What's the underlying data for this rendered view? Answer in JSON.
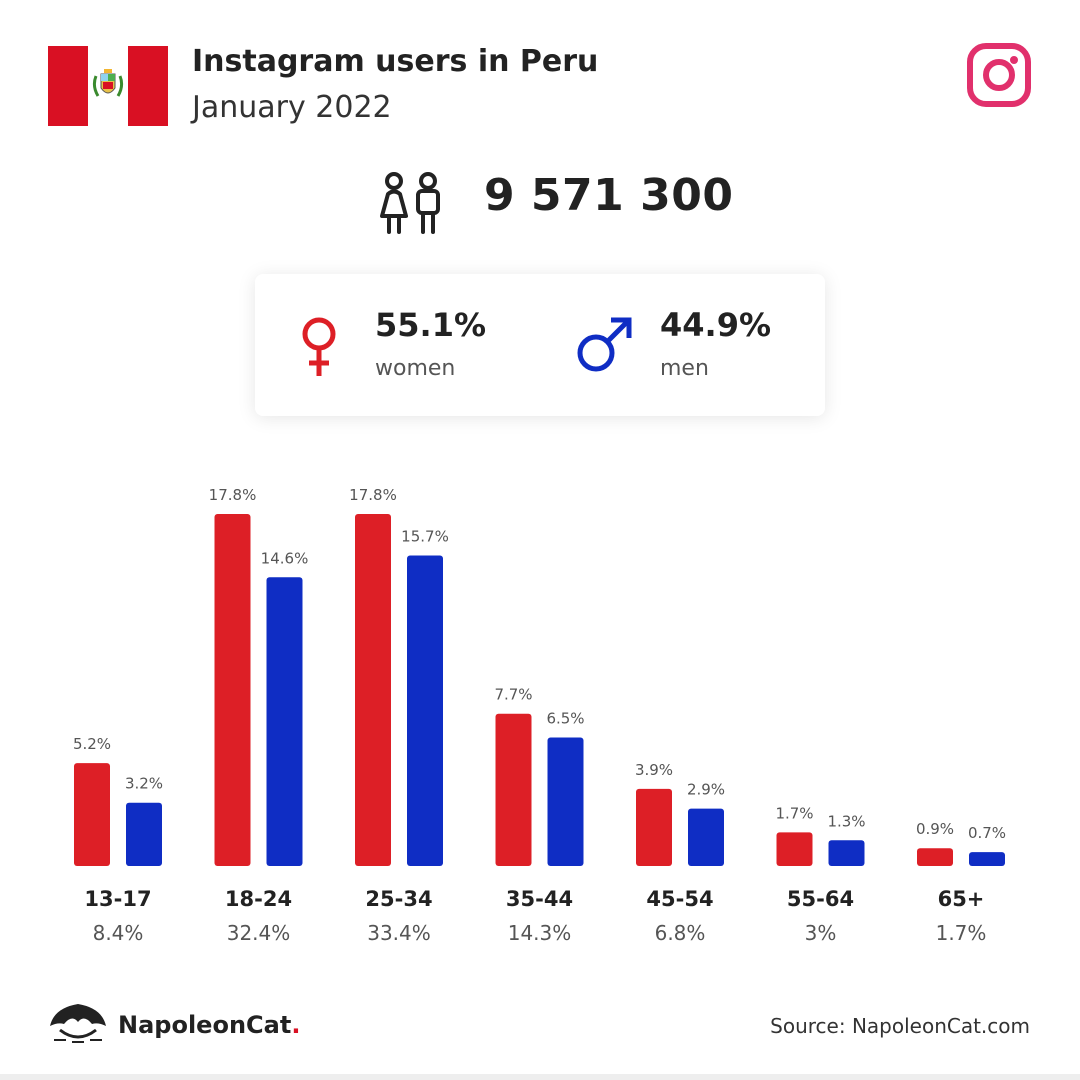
{
  "header": {
    "title": "Instagram users in Peru",
    "subtitle": "January 2022"
  },
  "total": {
    "value": "9 571 300",
    "icon": "people-icon"
  },
  "gender": {
    "women": {
      "pct": "55.1%",
      "label": "women",
      "color": "#dd1f26",
      "icon": "female-icon"
    },
    "men": {
      "pct": "44.9%",
      "label": "men",
      "color": "#0f2dc4",
      "icon": "male-icon"
    }
  },
  "chart_data": {
    "type": "bar",
    "categories": [
      "13-17",
      "18-24",
      "25-34",
      "35-44",
      "45-54",
      "55-64",
      "65+"
    ],
    "category_totals": [
      "8.4%",
      "32.4%",
      "33.4%",
      "14.3%",
      "6.8%",
      "3%",
      "1.7%"
    ],
    "series": [
      {
        "values": [
          5.2,
          17.8,
          17.8,
          7.7,
          3.9,
          1.7,
          0.9
        ],
        "labels": [
          "5.2%",
          "17.8%",
          "17.8%",
          "7.7%",
          "3.9%",
          "1.7%",
          "0.9%"
        ],
        "color": "#dd1f26"
      },
      {
        "values": [
          3.2,
          14.6,
          15.7,
          6.5,
          2.9,
          1.3,
          0.7
        ],
        "labels": [
          "3.2%",
          "14.6%",
          "15.7%",
          "6.5%",
          "2.9%",
          "1.3%",
          "0.7%"
        ],
        "color": "#0f2dc4"
      }
    ],
    "ylim": [
      0,
      17.8
    ],
    "grid": false
  },
  "footer": {
    "brand_name": "NapoleonCat",
    "brand_dot": ".",
    "source": "Source: NapoleonCat.com"
  },
  "colors": {
    "flag_red": "#d91023",
    "instagram": "#e1306c"
  }
}
